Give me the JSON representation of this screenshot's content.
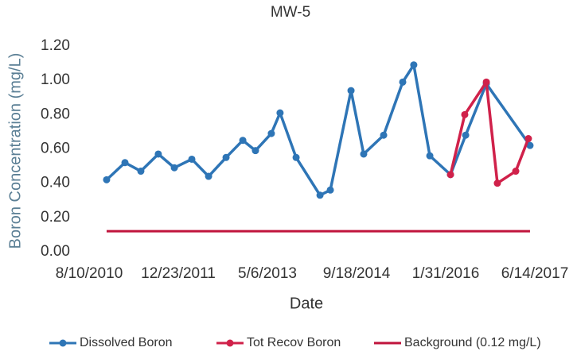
{
  "chart_data": {
    "type": "line",
    "title": "MW-5",
    "x_label": "Date",
    "y_label": "Boron Concentration (mg/L)",
    "xlim": [
      0,
      2500
    ],
    "xticks": [
      {
        "value": 0,
        "label": "8/10/2010"
      },
      {
        "value": 500,
        "label": "12/23/2011"
      },
      {
        "value": 1000,
        "label": "5/6/2013"
      },
      {
        "value": 1500,
        "label": "9/18/2014"
      },
      {
        "value": 2000,
        "label": "1/31/2016"
      },
      {
        "value": 2500,
        "label": "6/14/2017"
      }
    ],
    "ylim": [
      0,
      1.2
    ],
    "yticks": [
      {
        "value": 0,
        "label": "0.00"
      },
      {
        "value": 0.2,
        "label": "0.20"
      },
      {
        "value": 0.4,
        "label": "0.40"
      },
      {
        "value": 0.6,
        "label": "0.60"
      },
      {
        "value": 0.8,
        "label": "0.80"
      },
      {
        "value": 1.0,
        "label": "1.00"
      },
      {
        "value": 1.2,
        "label": "1.20"
      }
    ],
    "grid": false,
    "legend": "bottom",
    "series": [
      {
        "name": "Dissolved Boron",
        "color": "#2e75b6",
        "markers": true,
        "x": [
          98,
          201,
          290,
          388,
          478,
          576,
          670,
          768,
          862,
          933,
          1022,
          1071,
          1161,
          1295,
          1353,
          1469,
          1540,
          1652,
          1759,
          1821,
          1911,
          2027,
          2112,
          2228,
          2473
        ],
        "values": [
          0.42,
          0.52,
          0.47,
          0.57,
          0.49,
          0.54,
          0.44,
          0.55,
          0.65,
          0.59,
          0.69,
          0.81,
          0.55,
          0.33,
          0.36,
          0.94,
          0.57,
          0.68,
          0.99,
          1.09,
          0.56,
          0.45,
          0.68,
          0.98,
          0.62
        ]
      },
      {
        "name": "Tot Recov Boron",
        "color": "#d0214a",
        "markers": true,
        "x": [
          2027,
          2107,
          2228,
          2290,
          2393,
          2464
        ],
        "values": [
          0.45,
          0.8,
          0.99,
          0.4,
          0.47,
          0.66
        ]
      },
      {
        "name": "Background (0.12 mg/L)",
        "color": "#c0143c",
        "markers": false,
        "x": [
          98,
          2473
        ],
        "values": [
          0.12,
          0.12
        ]
      }
    ]
  }
}
